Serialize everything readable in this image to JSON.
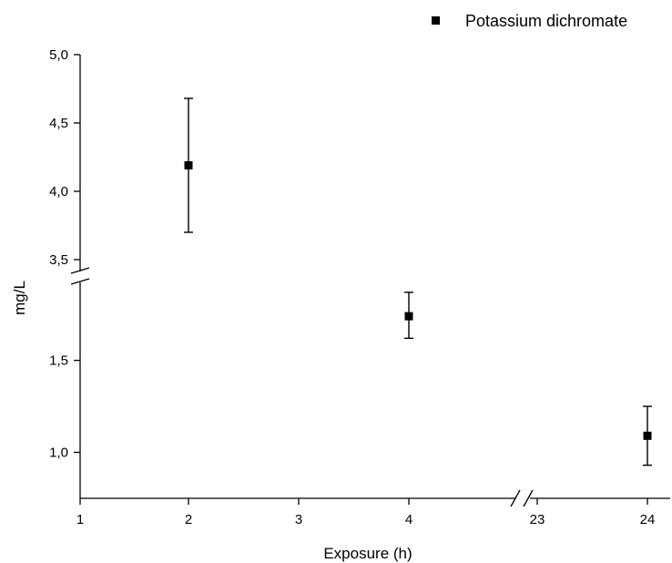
{
  "chart_data": {
    "type": "scatter",
    "xlabel": "Exposure (h)",
    "ylabel": "mg/L",
    "x_ticks": [
      "1",
      "2",
      "3",
      "4",
      "23",
      "24"
    ],
    "x_break": {
      "after": "4",
      "before": "23"
    },
    "y_ticks_lower": [
      "1,0",
      "1,5"
    ],
    "y_ticks_upper": [
      "3,5",
      "4,0",
      "4,5",
      "5,0"
    ],
    "y_break": {
      "lower_max": 1.8,
      "upper_min": 3.5
    },
    "ylim_lower": [
      0.75,
      1.8
    ],
    "ylim_upper": [
      3.5,
      5.0
    ],
    "legend": {
      "position": "top-right"
    },
    "grid": false,
    "series": [
      {
        "name": "Potassium dichromate",
        "marker": "square",
        "color": "#000000",
        "points": [
          {
            "x": 2,
            "y": 4.19,
            "err_low": 3.7,
            "err_high": 4.68
          },
          {
            "x": 4,
            "y": 1.74,
            "err_low": 1.62,
            "err_high": 1.87
          },
          {
            "x": 24,
            "y": 1.09,
            "err_low": 0.93,
            "err_high": 1.25
          }
        ]
      }
    ]
  }
}
